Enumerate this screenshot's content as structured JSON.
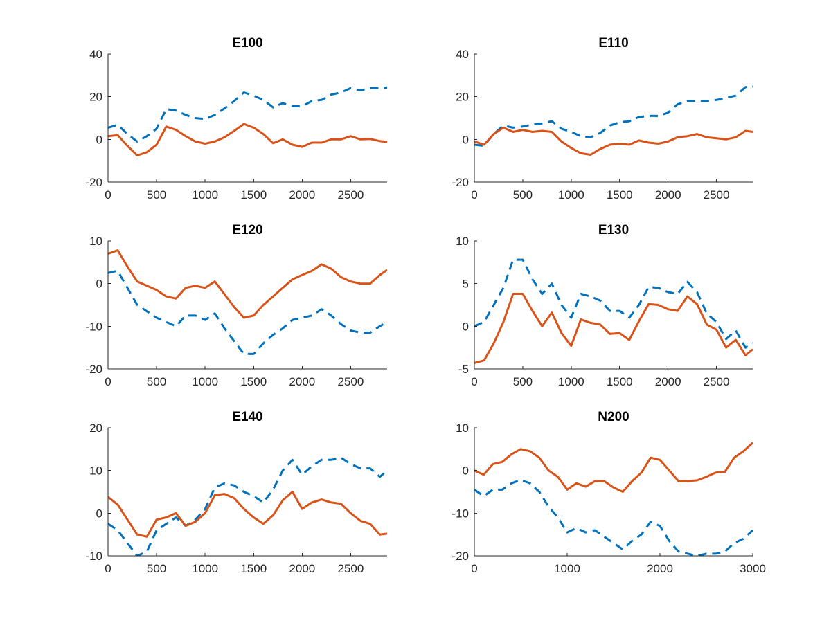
{
  "figure": {
    "background": "#ffffff"
  },
  "chart_data": [
    {
      "type": "line",
      "title": "E100",
      "xlabel": "",
      "ylabel": "",
      "xlim": [
        0,
        2875
      ],
      "ylim": [
        -20,
        40
      ],
      "xticks": [
        0,
        500,
        1000,
        1500,
        2000,
        2500
      ],
      "xtick_labels": [
        "0",
        "500",
        "1000",
        "1500",
        "2000",
        "2500"
      ],
      "yticks": [
        -20,
        0,
        20,
        40
      ],
      "ytick_labels": [
        "-20",
        "0",
        "20",
        "40"
      ],
      "grid": false,
      "series": [
        {
          "name": "dashed",
          "style": "dashed",
          "color": "#0072BD",
          "x": [
            0,
            100,
            200,
            300,
            400,
            500,
            600,
            700,
            800,
            900,
            1000,
            1100,
            1200,
            1300,
            1400,
            1500,
            1600,
            1700,
            1800,
            1900,
            2000,
            2100,
            2200,
            2300,
            2400,
            2500,
            2600,
            2700,
            2800,
            2875
          ],
          "y": [
            5.5,
            6.8,
            2.5,
            -1,
            1.5,
            5,
            14.2,
            13.5,
            11.5,
            10,
            9.5,
            11.5,
            14.5,
            18,
            22,
            20.5,
            18.5,
            15,
            17,
            15.5,
            15.5,
            18,
            18.5,
            21,
            22,
            24,
            23,
            24,
            24,
            24.3
          ]
        },
        {
          "name": "solid",
          "style": "solid",
          "color": "#D95319",
          "x": [
            0,
            100,
            200,
            300,
            400,
            500,
            600,
            700,
            800,
            900,
            1000,
            1100,
            1200,
            1300,
            1400,
            1500,
            1600,
            1700,
            1800,
            1900,
            2000,
            2100,
            2200,
            2300,
            2400,
            2500,
            2600,
            2700,
            2800,
            2875
          ],
          "y": [
            1.5,
            2,
            -3,
            -7.5,
            -6,
            -2.5,
            6,
            4.5,
            1.5,
            -1,
            -2,
            -1,
            1,
            4,
            7.2,
            5.5,
            2.5,
            -1.8,
            0,
            -2.5,
            -3.5,
            -1.5,
            -1.5,
            0,
            0,
            1.5,
            0,
            0.2,
            -0.8,
            -1.2
          ]
        }
      ]
    },
    {
      "type": "line",
      "title": "E110",
      "xlabel": "",
      "ylabel": "",
      "xlim": [
        0,
        2875
      ],
      "ylim": [
        -20,
        40
      ],
      "xticks": [
        0,
        500,
        1000,
        1500,
        2000,
        2500
      ],
      "xtick_labels": [
        "0",
        "500",
        "1000",
        "1500",
        "2000",
        "2500"
      ],
      "yticks": [
        -20,
        0,
        20,
        40
      ],
      "ytick_labels": [
        "-20",
        "0",
        "20",
        "40"
      ],
      "grid": false,
      "series": [
        {
          "name": "dashed",
          "style": "dashed",
          "color": "#0072BD",
          "x": [
            0,
            100,
            200,
            300,
            400,
            500,
            600,
            700,
            800,
            900,
            1000,
            1100,
            1200,
            1300,
            1400,
            1500,
            1600,
            1700,
            1800,
            1900,
            2000,
            2100,
            2200,
            2300,
            2400,
            2500,
            2600,
            2700,
            2800,
            2875
          ],
          "y": [
            -2.5,
            -3,
            2.5,
            6.5,
            5.5,
            6,
            7,
            7.5,
            8.5,
            5,
            3.5,
            1.5,
            1,
            3,
            6.5,
            8,
            8.5,
            10.5,
            11,
            11,
            12.5,
            16.5,
            18,
            18,
            18,
            18.5,
            19.5,
            20.5,
            24.5,
            24.8
          ]
        },
        {
          "name": "solid",
          "style": "solid",
          "color": "#D95319",
          "x": [
            0,
            100,
            200,
            300,
            400,
            500,
            600,
            700,
            800,
            900,
            1000,
            1100,
            1200,
            1300,
            1400,
            1500,
            1600,
            1700,
            1800,
            1900,
            2000,
            2100,
            2200,
            2300,
            2400,
            2500,
            2600,
            2700,
            2800,
            2875
          ],
          "y": [
            -1,
            -2.5,
            2.5,
            5.5,
            3.5,
            4.5,
            3.5,
            4,
            3.5,
            -1,
            -4,
            -6.5,
            -7.2,
            -4.5,
            -2.5,
            -2,
            -2.5,
            -0.5,
            -1.5,
            -2,
            -1,
            1,
            1.5,
            2.5,
            1,
            0.5,
            0,
            1,
            4,
            3.5
          ]
        }
      ]
    },
    {
      "type": "line",
      "title": "E120",
      "xlabel": "",
      "ylabel": "",
      "xlim": [
        0,
        2875
      ],
      "ylim": [
        -20,
        10
      ],
      "xticks": [
        0,
        500,
        1000,
        1500,
        2000,
        2500
      ],
      "xtick_labels": [
        "0",
        "500",
        "1000",
        "1500",
        "2000",
        "2500"
      ],
      "yticks": [
        -20,
        -10,
        0,
        10
      ],
      "ytick_labels": [
        "-20",
        "-10",
        "0",
        "10"
      ],
      "grid": false,
      "series": [
        {
          "name": "dashed",
          "style": "dashed",
          "color": "#0072BD",
          "x": [
            0,
            100,
            200,
            300,
            400,
            500,
            600,
            700,
            800,
            900,
            1000,
            1100,
            1200,
            1300,
            1400,
            1500,
            1600,
            1700,
            1800,
            1900,
            2000,
            2100,
            2200,
            2300,
            2400,
            2500,
            2600,
            2700,
            2800,
            2875
          ],
          "y": [
            2.5,
            3,
            -1,
            -5,
            -6.5,
            -8,
            -9,
            -10,
            -7.5,
            -7.5,
            -8.5,
            -7,
            -10.5,
            -13.5,
            -16.5,
            -16.5,
            -14,
            -12,
            -10.5,
            -8.5,
            -8,
            -7.5,
            -6,
            -7.5,
            -9.5,
            -11,
            -11.5,
            -11.5,
            -10,
            -9
          ]
        },
        {
          "name": "solid",
          "style": "solid",
          "color": "#D95319",
          "x": [
            0,
            100,
            200,
            300,
            400,
            500,
            600,
            700,
            800,
            900,
            1000,
            1100,
            1200,
            1300,
            1400,
            1500,
            1600,
            1700,
            1800,
            1900,
            2000,
            2100,
            2200,
            2300,
            2400,
            2500,
            2600,
            2700,
            2800,
            2875
          ],
          "y": [
            7,
            7.8,
            4,
            0.5,
            -0.5,
            -1.5,
            -3,
            -3.5,
            -1,
            -0.5,
            -1,
            0.5,
            -2.5,
            -5.5,
            -8,
            -7.5,
            -5,
            -3,
            -1,
            1,
            2,
            3,
            4.5,
            3.5,
            1.5,
            0.5,
            0,
            0,
            2,
            3.2
          ]
        }
      ]
    },
    {
      "type": "line",
      "title": "E130",
      "xlabel": "",
      "ylabel": "",
      "xlim": [
        0,
        2875
      ],
      "ylim": [
        -5,
        10
      ],
      "xticks": [
        0,
        500,
        1000,
        1500,
        2000,
        2500
      ],
      "xtick_labels": [
        "0",
        "500",
        "1000",
        "1500",
        "2000",
        "2500"
      ],
      "yticks": [
        -5,
        0,
        5,
        10
      ],
      "ytick_labels": [
        "-5",
        "0",
        "5",
        "10"
      ],
      "grid": false,
      "series": [
        {
          "name": "dashed",
          "style": "dashed",
          "color": "#0072BD",
          "x": [
            0,
            100,
            200,
            300,
            400,
            500,
            600,
            700,
            800,
            900,
            1000,
            1100,
            1200,
            1300,
            1400,
            1500,
            1600,
            1700,
            1800,
            1900,
            2000,
            2100,
            2200,
            2300,
            2400,
            2500,
            2600,
            2700,
            2800,
            2875
          ],
          "y": [
            0,
            0.5,
            2.5,
            4.5,
            7.8,
            7.8,
            5.5,
            3.8,
            5,
            2.5,
            1,
            3.8,
            3.5,
            3,
            1.8,
            1.8,
            1,
            2.5,
            4.6,
            4.5,
            4,
            3.8,
            5.2,
            4,
            1.5,
            0.5,
            -1.5,
            -0.5,
            -2.5,
            -2
          ]
        },
        {
          "name": "solid",
          "style": "solid",
          "color": "#D95319",
          "x": [
            0,
            100,
            200,
            300,
            400,
            500,
            600,
            700,
            800,
            900,
            1000,
            1100,
            1200,
            1300,
            1400,
            1500,
            1600,
            1700,
            1800,
            1900,
            2000,
            2100,
            2200,
            2300,
            2400,
            2500,
            2600,
            2700,
            2800,
            2875
          ],
          "y": [
            -4.3,
            -4,
            -2,
            0.5,
            3.8,
            3.8,
            1.8,
            0,
            1.6,
            -0.8,
            -2.3,
            0.8,
            0.4,
            0.2,
            -0.9,
            -0.8,
            -1.6,
            0.6,
            2.6,
            2.5,
            2,
            1.8,
            3.5,
            2.6,
            0.2,
            -0.4,
            -2.5,
            -1.6,
            -3.4,
            -2.7
          ]
        }
      ]
    },
    {
      "type": "line",
      "title": "E140",
      "xlabel": "",
      "ylabel": "",
      "xlim": [
        0,
        2875
      ],
      "ylim": [
        -10,
        20
      ],
      "xticks": [
        0,
        500,
        1000,
        1500,
        2000,
        2500
      ],
      "xtick_labels": [
        "0",
        "500",
        "1000",
        "1500",
        "2000",
        "2500"
      ],
      "yticks": [
        -10,
        0,
        10,
        20
      ],
      "ytick_labels": [
        "-10",
        "0",
        "10",
        "20"
      ],
      "grid": false,
      "series": [
        {
          "name": "dashed",
          "style": "dashed",
          "color": "#0072BD",
          "x": [
            0,
            100,
            200,
            300,
            400,
            500,
            600,
            700,
            800,
            900,
            1000,
            1100,
            1200,
            1300,
            1400,
            1500,
            1600,
            1700,
            1800,
            1900,
            2000,
            2100,
            2200,
            2300,
            2400,
            2500,
            2600,
            2700,
            2800,
            2875
          ],
          "y": [
            -2.5,
            -4,
            -7,
            -10,
            -9,
            -4,
            -2.5,
            -1,
            -3,
            -1.5,
            1,
            6,
            7,
            6.5,
            5,
            4,
            2.5,
            5.5,
            10,
            12.5,
            9,
            11,
            12.5,
            12.5,
            13,
            11.5,
            10.5,
            10.5,
            8.5,
            10
          ]
        },
        {
          "name": "solid",
          "style": "solid",
          "color": "#D95319",
          "x": [
            0,
            100,
            200,
            300,
            400,
            500,
            600,
            700,
            800,
            900,
            1000,
            1100,
            1200,
            1300,
            1400,
            1500,
            1600,
            1700,
            1800,
            1900,
            2000,
            2100,
            2200,
            2300,
            2400,
            2500,
            2600,
            2700,
            2800,
            2875
          ],
          "y": [
            3.8,
            2,
            -1.5,
            -5,
            -5.5,
            -1.5,
            -1,
            0,
            -3,
            -2,
            0,
            4.2,
            4.5,
            3.5,
            1,
            -1,
            -2.5,
            -0.5,
            3,
            5,
            1,
            2.5,
            3.2,
            2.5,
            2.2,
            0,
            -1.8,
            -2.5,
            -5,
            -4.8
          ]
        }
      ]
    },
    {
      "type": "line",
      "title": "N200",
      "xlabel": "",
      "ylabel": "",
      "xlim": [
        0,
        3000
      ],
      "ylim": [
        -20,
        10
      ],
      "xticks": [
        0,
        1000,
        2000,
        3000
      ],
      "xtick_labels": [
        "0",
        "1000",
        "2000",
        "3000"
      ],
      "yticks": [
        -20,
        -10,
        0,
        10
      ],
      "ytick_labels": [
        "-20",
        "-10",
        "0",
        "10"
      ],
      "grid": false,
      "series": [
        {
          "name": "dashed",
          "style": "dashed",
          "color": "#0072BD",
          "x": [
            0,
            100,
            200,
            300,
            400,
            500,
            600,
            700,
            800,
            900,
            1000,
            1100,
            1200,
            1300,
            1400,
            1500,
            1600,
            1700,
            1800,
            1900,
            2000,
            2100,
            2200,
            2300,
            2400,
            2500,
            2600,
            2700,
            2800,
            2900,
            3000
          ],
          "y": [
            -4.5,
            -6,
            -4.5,
            -4.5,
            -3,
            -2.2,
            -3,
            -5,
            -8.5,
            -11,
            -14.5,
            -13.5,
            -14.5,
            -14,
            -15.5,
            -17,
            -18.5,
            -16.5,
            -15,
            -12,
            -13,
            -16.5,
            -19,
            -19.5,
            -20,
            -19.5,
            -19.5,
            -19,
            -17,
            -16,
            -14
          ]
        },
        {
          "name": "solid",
          "style": "solid",
          "color": "#D95319",
          "x": [
            0,
            100,
            200,
            300,
            400,
            500,
            600,
            700,
            800,
            900,
            1000,
            1100,
            1200,
            1300,
            1400,
            1500,
            1600,
            1700,
            1800,
            1900,
            2000,
            2100,
            2200,
            2300,
            2400,
            2500,
            2600,
            2700,
            2800,
            2900,
            3000
          ],
          "y": [
            0,
            -1,
            1.5,
            2,
            3.8,
            5,
            4.5,
            3,
            0,
            -1.5,
            -4.5,
            -3,
            -3.8,
            -2.5,
            -2.5,
            -4,
            -5,
            -2.5,
            -0.5,
            3,
            2.5,
            0,
            -2.5,
            -2.5,
            -2.3,
            -1.5,
            -0.5,
            -0.3,
            3,
            4.5,
            6.5
          ]
        }
      ]
    }
  ]
}
